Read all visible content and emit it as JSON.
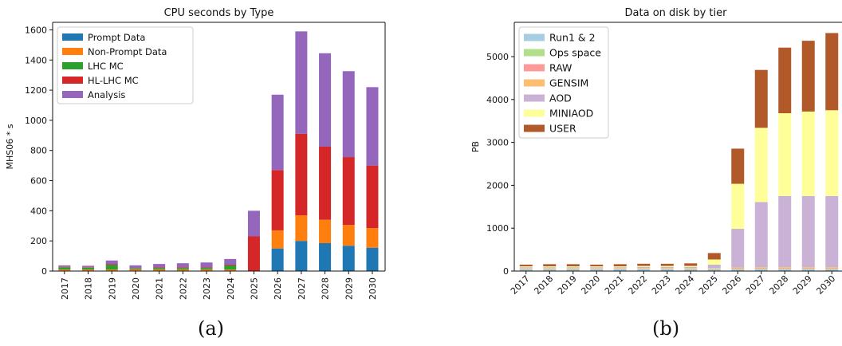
{
  "panel_labels": {
    "a": "(a)",
    "b": "(b)"
  },
  "chart_data": [
    {
      "type": "bar",
      "stacked": true,
      "title": "CPU seconds by Type",
      "xlabel": "",
      "ylabel": "MHS06 * s",
      "ylim": [
        0,
        1650
      ],
      "yticks": [
        0,
        200,
        400,
        600,
        800,
        1000,
        1200,
        1400,
        1600
      ],
      "grid": false,
      "legend_position": "top-left",
      "categories": [
        "2017",
        "2018",
        "2019",
        "2020",
        "2021",
        "2022",
        "2023",
        "2024",
        "2025",
        "2026",
        "2027",
        "2028",
        "2029",
        "2030"
      ],
      "series": [
        {
          "name": "Prompt Data",
          "color": "#1f77b4",
          "values": [
            3,
            3,
            3,
            3,
            3,
            3,
            3,
            3,
            0,
            150,
            200,
            185,
            168,
            155
          ]
        },
        {
          "name": "Non-Prompt Data",
          "color": "#ff7f0e",
          "values": [
            7,
            7,
            7,
            7,
            7,
            7,
            7,
            7,
            0,
            120,
            170,
            155,
            138,
            130
          ]
        },
        {
          "name": "LHC MC",
          "color": "#2ca02c",
          "values": [
            15,
            12,
            30,
            7,
            10,
            10,
            10,
            27,
            0,
            0,
            0,
            0,
            0,
            0
          ]
        },
        {
          "name": "HL-LHC MC",
          "color": "#d62728",
          "values": [
            3,
            3,
            5,
            3,
            5,
            5,
            5,
            5,
            230,
            400,
            540,
            485,
            450,
            415
          ]
        },
        {
          "name": "Analysis",
          "color": "#9467bd",
          "values": [
            10,
            10,
            25,
            18,
            22,
            27,
            32,
            38,
            170,
            500,
            680,
            620,
            570,
            520
          ]
        }
      ]
    },
    {
      "type": "bar",
      "stacked": true,
      "title": "Data on disk by tier",
      "xlabel": "",
      "ylabel": "PB",
      "ylim": [
        0,
        5800
      ],
      "yticks": [
        0,
        1000,
        2000,
        3000,
        4000,
        5000
      ],
      "grid": false,
      "legend_position": "top-left",
      "categories": [
        "2017",
        "2018",
        "2019",
        "2020",
        "2021",
        "2022",
        "2023",
        "2024",
        "2025",
        "2026",
        "2027",
        "2028",
        "2029",
        "2030"
      ],
      "series": [
        {
          "name": "Run1 & 2",
          "color": "#a6cee3",
          "values": [
            40,
            40,
            40,
            40,
            40,
            40,
            40,
            40,
            40,
            40,
            40,
            40,
            40,
            40
          ]
        },
        {
          "name": "Ops space",
          "color": "#b2df8a",
          "values": [
            10,
            10,
            10,
            10,
            10,
            10,
            10,
            10,
            10,
            10,
            10,
            10,
            10,
            10
          ]
        },
        {
          "name": "RAW",
          "color": "#fb9a99",
          "values": [
            10,
            10,
            10,
            10,
            10,
            10,
            10,
            10,
            10,
            15,
            15,
            15,
            15,
            15
          ]
        },
        {
          "name": "GENSIM",
          "color": "#fdbf6f",
          "values": [
            10,
            10,
            10,
            10,
            10,
            10,
            10,
            10,
            10,
            20,
            25,
            25,
            25,
            25
          ]
        },
        {
          "name": "AOD",
          "color": "#cab2d6",
          "values": [
            20,
            20,
            20,
            20,
            20,
            25,
            25,
            25,
            80,
            900,
            1520,
            1660,
            1660,
            1660
          ]
        },
        {
          "name": "MINIAOD",
          "color": "#ffff99",
          "values": [
            20,
            20,
            20,
            20,
            20,
            25,
            25,
            25,
            120,
            1050,
            1730,
            1930,
            1970,
            2000
          ]
        },
        {
          "name": "USER",
          "color": "#b15928",
          "values": [
            40,
            50,
            50,
            40,
            50,
            50,
            50,
            60,
            150,
            820,
            1350,
            1530,
            1650,
            1800
          ]
        }
      ]
    }
  ]
}
